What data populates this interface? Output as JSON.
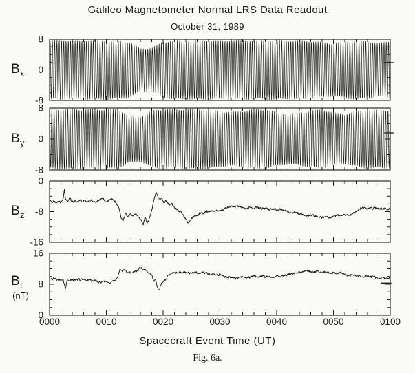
{
  "figure": {
    "title": "Galileo Magnetometer Normal LRS Data Readout",
    "date": "October 31, 1989",
    "caption": "Fig. 6a.",
    "ink_color": "#1b1b1b",
    "background_color": "#fafaf8"
  },
  "chart_data": {
    "type": "line",
    "title": "Galileo Magnetometer Normal LRS Data Readout",
    "subtitle": "October 31, 1989",
    "grid": false,
    "legend": "none",
    "x_axis": {
      "label": "Spacecraft Event Time (UT)",
      "range_minutes": [
        0,
        60
      ],
      "tick_labels": [
        "0000",
        "0010",
        "0020",
        "0030",
        "0040",
        "0050",
        "0100"
      ],
      "major_tick_minutes": 10,
      "minor_tick_minutes": 2
    },
    "panels": [
      {
        "id": "bx",
        "label_base": "B",
        "label_sub": "x",
        "ylim": [
          -8,
          8
        ],
        "y_tick_values": [
          8,
          0,
          -8
        ],
        "y_tick_labels": [
          "8",
          "0",
          "-8"
        ],
        "y_minor_step": 2,
        "signal": "spin_modulated_oscillation",
        "oscillation_period_minutes": 0.4,
        "phase_radians": 0,
        "envelope_t_step_minutes": 2,
        "envelope": [
          7.8,
          7.9,
          7.7,
          7.8,
          7.8,
          7.9,
          7.7,
          7.4,
          5.6,
          5.8,
          7.4,
          7.8,
          7.7,
          7.9,
          7.8,
          7.7,
          7.8,
          7.9,
          7.7,
          7.8,
          7.9,
          7.7,
          7.8,
          7.6,
          7.3,
          6.9,
          7.5,
          7.8,
          7.6,
          7.0,
          7.6
        ],
        "edge_dash": {
          "t_start": 58.9,
          "t_end": 60.6,
          "value": 1.9
        }
      },
      {
        "id": "by",
        "label_base": "B",
        "label_sub": "y",
        "ylim": [
          -8,
          8
        ],
        "y_tick_values": [
          8,
          0,
          -8
        ],
        "y_tick_labels": [
          "8",
          "0",
          "-8"
        ],
        "y_minor_step": 2,
        "signal": "spin_modulated_oscillation",
        "oscillation_period_minutes": 0.4,
        "phase_radians": 1.571,
        "envelope_t_step_minutes": 2,
        "envelope": [
          7.7,
          7.8,
          7.9,
          7.7,
          7.8,
          7.7,
          7.8,
          6.2,
          5.9,
          7.4,
          7.8,
          7.7,
          7.8,
          7.9,
          7.7,
          7.2,
          7.0,
          7.3,
          7.8,
          7.7,
          7.0,
          6.6,
          6.9,
          7.4,
          7.7,
          6.9,
          6.5,
          7.2,
          7.7,
          7.5,
          7.6
        ],
        "edge_dash": {
          "t_start": 58.9,
          "t_end": 60.6,
          "value": 1.6
        }
      },
      {
        "id": "bz",
        "label_base": "B",
        "label_sub": "z",
        "ylim": [
          -16,
          0
        ],
        "y_tick_values": [
          0,
          -8,
          -16
        ],
        "y_tick_labels": [
          "0",
          "-8",
          "-16"
        ],
        "y_minor_step": 2,
        "signal": "trace",
        "noise_amplitude": 0.3,
        "points": [
          [
            0,
            -5.0
          ],
          [
            0.4,
            -5.6
          ],
          [
            0.8,
            -5.2
          ],
          [
            1.2,
            -5.7
          ],
          [
            1.6,
            -5.3
          ],
          [
            2.0,
            -5.5
          ],
          [
            2.4,
            -4.6
          ],
          [
            2.6,
            -2.2
          ],
          [
            2.8,
            -4.8
          ],
          [
            3.2,
            -5.4
          ],
          [
            3.6,
            -4.3
          ],
          [
            3.8,
            -5.1
          ],
          [
            4.2,
            -5.6
          ],
          [
            4.6,
            -5.1
          ],
          [
            5.0,
            -5.4
          ],
          [
            5.4,
            -4.9
          ],
          [
            5.8,
            -5.5
          ],
          [
            6.2,
            -5.1
          ],
          [
            6.6,
            -5.6
          ],
          [
            7.0,
            -5.2
          ],
          [
            7.4,
            -4.8
          ],
          [
            7.8,
            -5.3
          ],
          [
            8.2,
            -5.6
          ],
          [
            8.6,
            -5.1
          ],
          [
            9.0,
            -4.9
          ],
          [
            9.3,
            -4.3
          ],
          [
            9.6,
            -5.0
          ],
          [
            10.0,
            -5.4
          ],
          [
            10.4,
            -5.0
          ],
          [
            10.8,
            -4.7
          ],
          [
            11.2,
            -5.0
          ],
          [
            11.7,
            -5.5
          ],
          [
            12.2,
            -7.0
          ],
          [
            12.6,
            -9.7
          ],
          [
            13.0,
            -10.3
          ],
          [
            13.4,
            -8.4
          ],
          [
            13.8,
            -9.3
          ],
          [
            14.2,
            -8.6
          ],
          [
            14.6,
            -9.1
          ],
          [
            15.0,
            -8.8
          ],
          [
            15.4,
            -9.0
          ],
          [
            15.8,
            -9.6
          ],
          [
            16.2,
            -10.4
          ],
          [
            16.5,
            -11.5
          ],
          [
            16.8,
            -9.5
          ],
          [
            17.2,
            -11.0
          ],
          [
            17.6,
            -9.6
          ],
          [
            18.0,
            -7.6
          ],
          [
            18.4,
            -4.9
          ],
          [
            18.8,
            -3.0
          ],
          [
            19.1,
            -4.3
          ],
          [
            19.4,
            -4.7
          ],
          [
            19.7,
            -4.5
          ],
          [
            20.1,
            -5.7
          ],
          [
            20.5,
            -5.1
          ],
          [
            21.0,
            -6.2
          ],
          [
            21.5,
            -5.9
          ],
          [
            22.0,
            -7.0
          ],
          [
            22.5,
            -7.4
          ],
          [
            23.0,
            -8.0
          ],
          [
            23.5,
            -8.8
          ],
          [
            24.0,
            -10.0
          ],
          [
            24.4,
            -10.9
          ],
          [
            24.8,
            -10.2
          ],
          [
            25.2,
            -9.4
          ],
          [
            25.6,
            -8.8
          ],
          [
            26.0,
            -9.1
          ],
          [
            26.5,
            -8.3
          ],
          [
            27.0,
            -8.6
          ],
          [
            27.5,
            -7.9
          ],
          [
            28.0,
            -8.1
          ],
          [
            28.5,
            -7.7
          ],
          [
            29.0,
            -8.0
          ],
          [
            29.5,
            -7.6
          ],
          [
            30.0,
            -7.8
          ],
          [
            30.7,
            -7.4
          ],
          [
            31.4,
            -6.9
          ],
          [
            32.0,
            -6.6
          ],
          [
            32.7,
            -6.9
          ],
          [
            33.4,
            -6.5
          ],
          [
            34.0,
            -7.0
          ],
          [
            34.7,
            -7.3
          ],
          [
            35.4,
            -6.9
          ],
          [
            36.0,
            -7.2
          ],
          [
            36.7,
            -6.8
          ],
          [
            37.4,
            -7.3
          ],
          [
            38.0,
            -7.1
          ],
          [
            38.7,
            -7.5
          ],
          [
            39.4,
            -7.2
          ],
          [
            40.0,
            -7.6
          ],
          [
            40.7,
            -7.3
          ],
          [
            41.4,
            -7.8
          ],
          [
            42.0,
            -8.1
          ],
          [
            42.7,
            -8.4
          ],
          [
            43.4,
            -8.2
          ],
          [
            44.0,
            -8.6
          ],
          [
            44.7,
            -8.9
          ],
          [
            45.4,
            -9.1
          ],
          [
            46.0,
            -8.8
          ],
          [
            46.7,
            -9.2
          ],
          [
            47.4,
            -9.4
          ],
          [
            48.0,
            -9.6
          ],
          [
            48.7,
            -9.3
          ],
          [
            49.4,
            -9.5
          ],
          [
            50.0,
            -9.2
          ],
          [
            50.7,
            -8.9
          ],
          [
            51.4,
            -9.1
          ],
          [
            52.0,
            -8.8
          ],
          [
            52.7,
            -8.9
          ],
          [
            53.4,
            -8.6
          ],
          [
            54.0,
            -8.0
          ],
          [
            54.6,
            -7.3
          ],
          [
            55.2,
            -7.0
          ],
          [
            55.8,
            -7.2
          ],
          [
            56.4,
            -6.9
          ],
          [
            57.0,
            -7.2
          ],
          [
            57.6,
            -7.0
          ],
          [
            58.2,
            -7.4
          ],
          [
            58.8,
            -7.1
          ],
          [
            59.4,
            -7.4
          ],
          [
            60.0,
            -7.2
          ]
        ]
      },
      {
        "id": "bt",
        "label_base": "B",
        "label_sub": "t",
        "units": "(nT)",
        "ylim": [
          0,
          16
        ],
        "y_tick_values": [
          16,
          8,
          0
        ],
        "y_tick_labels": [
          "16",
          "8",
          "0"
        ],
        "y_minor_step": 2,
        "signal": "trace",
        "noise_amplitude": 0.28,
        "points": [
          [
            0,
            9.6
          ],
          [
            0.4,
            9.3
          ],
          [
            0.8,
            9.5
          ],
          [
            1.2,
            9.1
          ],
          [
            1.6,
            9.3
          ],
          [
            2.0,
            9.0
          ],
          [
            2.4,
            9.2
          ],
          [
            2.8,
            6.8
          ],
          [
            3.1,
            9.1
          ],
          [
            3.5,
            8.9
          ],
          [
            4.0,
            9.2
          ],
          [
            4.5,
            9.0
          ],
          [
            5.0,
            9.3
          ],
          [
            5.5,
            9.1
          ],
          [
            6.0,
            9.3
          ],
          [
            6.5,
            8.9
          ],
          [
            7.0,
            9.2
          ],
          [
            7.5,
            8.8
          ],
          [
            8.0,
            9.0
          ],
          [
            8.5,
            8.6
          ],
          [
            9.0,
            8.5
          ],
          [
            9.5,
            8.8
          ],
          [
            10.0,
            8.6
          ],
          [
            10.5,
            8.4
          ],
          [
            11.0,
            8.8
          ],
          [
            11.5,
            9.0
          ],
          [
            12.0,
            9.7
          ],
          [
            12.4,
            11.9
          ],
          [
            12.8,
            11.3
          ],
          [
            13.2,
            11.7
          ],
          [
            13.6,
            11.0
          ],
          [
            14.0,
            11.3
          ],
          [
            14.5,
            10.9
          ],
          [
            15.0,
            11.2
          ],
          [
            15.5,
            11.5
          ],
          [
            16.0,
            12.3
          ],
          [
            16.4,
            11.8
          ],
          [
            16.8,
            12.0
          ],
          [
            17.2,
            11.3
          ],
          [
            17.6,
            10.9
          ],
          [
            18.0,
            10.4
          ],
          [
            18.4,
            8.7
          ],
          [
            18.7,
            9.2
          ],
          [
            19.0,
            7.2
          ],
          [
            19.3,
            6.5
          ],
          [
            19.7,
            8.3
          ],
          [
            20.1,
            8.9
          ],
          [
            20.5,
            9.3
          ],
          [
            21.0,
            10.4
          ],
          [
            21.5,
            10.8
          ],
          [
            22.0,
            10.9
          ],
          [
            22.5,
            11.0
          ],
          [
            23.0,
            11.1
          ],
          [
            23.5,
            10.9
          ],
          [
            24.0,
            11.1
          ],
          [
            24.5,
            11.0
          ],
          [
            25.0,
            10.8
          ],
          [
            25.5,
            11.1
          ],
          [
            26.0,
            11.0
          ],
          [
            26.5,
            10.8
          ],
          [
            27.0,
            11.1
          ],
          [
            27.5,
            10.9
          ],
          [
            28.0,
            10.8
          ],
          [
            28.5,
            10.5
          ],
          [
            29.0,
            10.7
          ],
          [
            29.5,
            10.3
          ],
          [
            30.0,
            10.5
          ],
          [
            30.7,
            10.0
          ],
          [
            31.4,
            9.7
          ],
          [
            32.0,
            9.9
          ],
          [
            32.7,
            9.5
          ],
          [
            33.4,
            9.8
          ],
          [
            34.0,
            10.0
          ],
          [
            34.7,
            9.6
          ],
          [
            35.4,
            9.9
          ],
          [
            36.0,
            10.1
          ],
          [
            36.7,
            9.8
          ],
          [
            37.4,
            10.2
          ],
          [
            38.0,
            9.9
          ],
          [
            38.7,
            10.1
          ],
          [
            39.4,
            9.8
          ],
          [
            40.0,
            10.3
          ],
          [
            40.7,
            10.0
          ],
          [
            41.4,
            10.2
          ],
          [
            42.0,
            10.5
          ],
          [
            42.7,
            10.7
          ],
          [
            43.4,
            10.9
          ],
          [
            44.0,
            11.1
          ],
          [
            44.7,
            11.3
          ],
          [
            45.4,
            11.5
          ],
          [
            46.0,
            11.3
          ],
          [
            46.7,
            11.1
          ],
          [
            47.4,
            11.3
          ],
          [
            48.0,
            11.0
          ],
          [
            48.7,
            11.2
          ],
          [
            49.4,
            10.9
          ],
          [
            50.0,
            11.0
          ],
          [
            50.7,
            10.8
          ],
          [
            51.4,
            11.0
          ],
          [
            52.0,
            10.6
          ],
          [
            52.7,
            10.2
          ],
          [
            53.4,
            10.4
          ],
          [
            54.0,
            10.1
          ],
          [
            54.6,
            10.3
          ],
          [
            55.2,
            9.9
          ],
          [
            55.8,
            10.1
          ],
          [
            56.4,
            9.8
          ],
          [
            57.0,
            10.0
          ],
          [
            57.6,
            9.7
          ],
          [
            58.2,
            9.5
          ],
          [
            58.8,
            9.7
          ],
          [
            59.4,
            9.6
          ],
          [
            60.0,
            9.7
          ]
        ],
        "edge_dash": {
          "t_start": 58.3,
          "t_end": 60.2,
          "value": 8.3
        }
      }
    ]
  }
}
